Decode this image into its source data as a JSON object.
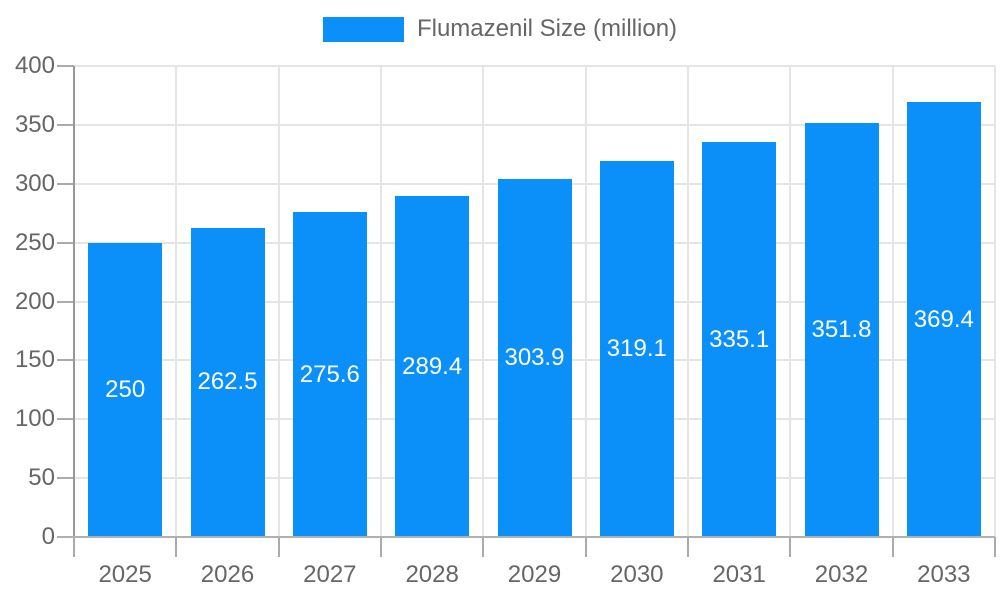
{
  "page": {
    "background": "#ffffff"
  },
  "legend": {
    "label": "Flumazenil Size (million)"
  },
  "chart_data": {
    "type": "bar",
    "title": "Flumazenil Size (million)",
    "categories": [
      "2025",
      "2026",
      "2027",
      "2028",
      "2029",
      "2030",
      "2031",
      "2032",
      "2033"
    ],
    "series": [
      {
        "name": "Flumazenil Size (million)",
        "values": [
          250,
          262.5,
          275.6,
          289.4,
          303.9,
          319.1,
          335.1,
          351.8,
          369.4
        ]
      }
    ],
    "value_labels": [
      "250",
      "262.5",
      "275.6",
      "289.4",
      "303.9",
      "319.1",
      "335.1",
      "351.8",
      "369.4"
    ],
    "xlabel": "",
    "ylabel": "",
    "ylim": [
      0,
      400
    ],
    "yticks": [
      0,
      50,
      100,
      150,
      200,
      250,
      300,
      350,
      400
    ],
    "ytick_labels": [
      "0",
      "50",
      "100",
      "150",
      "200",
      "250",
      "300",
      "350",
      "400"
    ],
    "grid": true,
    "legend_position": "top",
    "colors": {
      "bar": "#0a90f8",
      "gridline": "#e5e5e5",
      "zero_line": "#b0b0b0",
      "tick": "#aaaaaa",
      "axis": "#999999",
      "axis_text": "#666666",
      "value_label_text": "#ffffff",
      "background": "#ffffff"
    }
  }
}
